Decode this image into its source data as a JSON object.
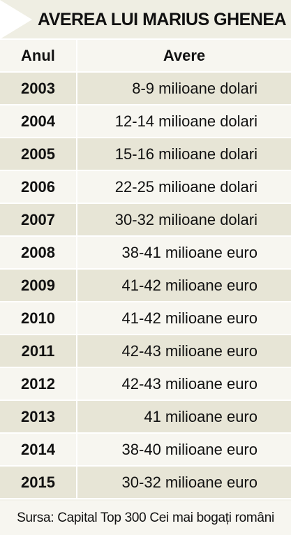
{
  "title": "AVEREA LUI MARIUS GHENEA",
  "table": {
    "headers": {
      "year": "Anul",
      "wealth": "Avere"
    },
    "rows": [
      {
        "year": "2003",
        "wealth": "8-9 milioane dolari"
      },
      {
        "year": "2004",
        "wealth": "12-14 milioane dolari"
      },
      {
        "year": "2005",
        "wealth": "15-16 milioane dolari"
      },
      {
        "year": "2006",
        "wealth": "22-25 milioane dolari"
      },
      {
        "year": "2007",
        "wealth": "30-32 milioane dolari"
      },
      {
        "year": "2008",
        "wealth": "38-41 milioane euro"
      },
      {
        "year": "2009",
        "wealth": "41-42 milioane euro"
      },
      {
        "year": "2010",
        "wealth": "41-42 milioane euro"
      },
      {
        "year": "2011",
        "wealth": "42-43 milioane euro"
      },
      {
        "year": "2012",
        "wealth": "42-43 milioane euro"
      },
      {
        "year": "2013",
        "wealth": "41 milioane euro"
      },
      {
        "year": "2014",
        "wealth": "38-40 milioane euro"
      },
      {
        "year": "2015",
        "wealth": "30-32 milioane euro"
      }
    ]
  },
  "source": "Sursa: Capital Top 300 Cei mai bogați români",
  "colors": {
    "background": "#f3f2ea",
    "row_band": "#e7e5d6",
    "row_light": "#f7f6f0",
    "divider": "#ffffff",
    "text": "#111111"
  }
}
